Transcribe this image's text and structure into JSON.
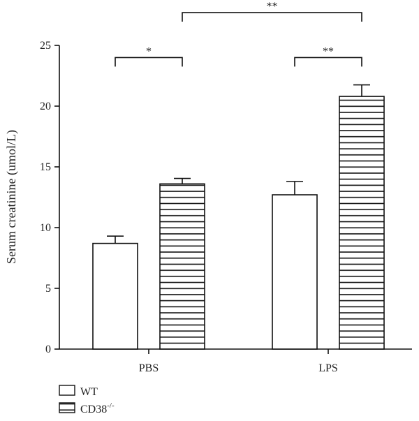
{
  "chart_data": {
    "type": "bar",
    "title": "",
    "xlabel": "",
    "ylabel": "Serum creatinine (umol/L)",
    "ylim": [
      0,
      25
    ],
    "yticks": [
      0,
      5,
      10,
      15,
      20,
      25
    ],
    "categories": [
      "PBS",
      "LPS"
    ],
    "series": [
      {
        "name": "WT",
        "values": [
          8.7,
          12.7
        ],
        "errors": [
          0.6,
          1.1
        ],
        "pattern": "none"
      },
      {
        "name": "CD38",
        "name_sup": "-/-",
        "values": [
          13.6,
          20.8
        ],
        "errors": [
          0.45,
          0.95
        ],
        "pattern": "horizontal-lines"
      }
    ],
    "significance": [
      {
        "label": "*",
        "from": {
          "category": 0,
          "series": 0
        },
        "to": {
          "category": 0,
          "series": 1
        },
        "level": 24.0
      },
      {
        "label": "**",
        "from": {
          "category": 1,
          "series": 0
        },
        "to": {
          "category": 1,
          "series": 1
        },
        "level": 24.0
      },
      {
        "label": "**",
        "from": {
          "category": 0,
          "series": 1
        },
        "to": {
          "category": 1,
          "series": 1
        },
        "level": 27.7
      }
    ],
    "legend": {
      "position": "bottom-left"
    },
    "grid": false
  }
}
